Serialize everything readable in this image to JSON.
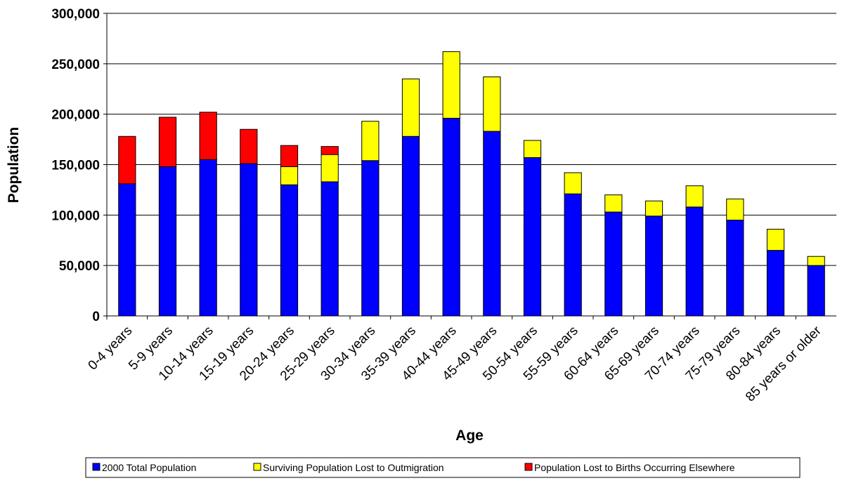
{
  "chart_data": {
    "type": "stacked-bar",
    "x_label": "Age",
    "y_label": "Population",
    "categories": [
      "0-4 years",
      "5-9 years",
      "10-14 years",
      "15-19 years",
      "20-24 years",
      "25-29 years",
      "30-34 years",
      "35-39 years",
      "40-44 years",
      "45-49 years",
      "50-54 years",
      "55-59 years",
      "60-64 years",
      "65-69 years",
      "70-74 years",
      "75-79 years",
      "80-84 years",
      "85 years or older"
    ],
    "series": [
      {
        "name": "2000 Total Population",
        "color": "#0000ff",
        "values": [
          131000,
          148000,
          155000,
          151000,
          130000,
          133000,
          154000,
          178000,
          196000,
          183000,
          157000,
          121000,
          103000,
          99000,
          108000,
          95000,
          65000,
          50000
        ]
      },
      {
        "name": "Surviving Population Lost to Outmigration",
        "color": "#ffff00",
        "values": [
          0,
          0,
          0,
          0,
          18000,
          27000,
          39000,
          57000,
          66000,
          54000,
          17000,
          21000,
          17000,
          15000,
          21000,
          21000,
          21000,
          9000
        ]
      },
      {
        "name": "Population Lost to Births Occurring Elsewhere",
        "color": "#ff0000",
        "values": [
          47000,
          49000,
          47000,
          34000,
          21000,
          8000,
          0,
          0,
          0,
          0,
          0,
          0,
          0,
          0,
          0,
          0,
          0,
          0
        ]
      }
    ],
    "ylim": [
      0,
      300000
    ],
    "yticks": [
      0,
      {
        "value": 50000,
        "label": "50,000"
      },
      {
        "value": 100000,
        "label": "100,000"
      },
      {
        "value": 150000,
        "label": "150,000"
      },
      {
        "value": 200000,
        "label": "200,000"
      },
      {
        "value": 250000,
        "label": "250,000"
      },
      {
        "value": 300000,
        "label": "300,000"
      }
    ],
    "grid": true,
    "legend": "bottom"
  }
}
